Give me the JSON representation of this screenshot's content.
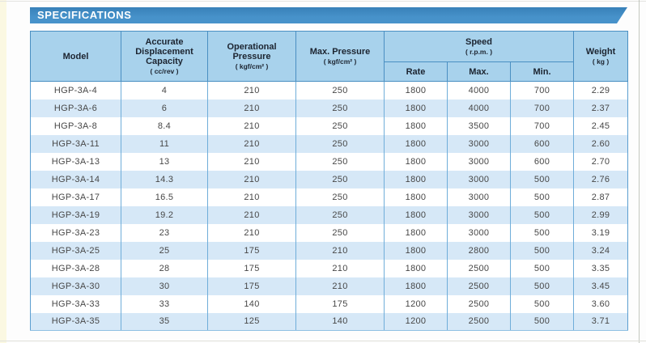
{
  "banner": {
    "title": "SPECIFICATIONS"
  },
  "colors": {
    "banner_blue": "#4792ca",
    "header_bg": "#a8d2ec",
    "stripe_bg": "#d6e8f7",
    "border_blue": "#4a8fc2",
    "page_edge_strip": "#fbf8e2"
  },
  "table": {
    "columns": [
      {
        "label": "Model",
        "unit": ""
      },
      {
        "label": "Accurate Displacement Capacity",
        "unit": "( cc/rev )"
      },
      {
        "label": "Operational Pressure",
        "unit": "( kgf/cm² )"
      },
      {
        "label": "Max. Pressure",
        "unit": "( kgf/cm² )"
      },
      {
        "label": "Speed",
        "unit": "( r.p.m. )",
        "subcolumns": [
          "Rate",
          "Max.",
          "Min."
        ]
      },
      {
        "label": "Weight",
        "unit": "( kg )"
      }
    ],
    "rows": [
      [
        "HGP-3A-4",
        "4",
        "210",
        "250",
        "1800",
        "4000",
        "700",
        "2.29"
      ],
      [
        "HGP-3A-6",
        "6",
        "210",
        "250",
        "1800",
        "4000",
        "700",
        "2.37"
      ],
      [
        "HGP-3A-8",
        "8.4",
        "210",
        "250",
        "1800",
        "3500",
        "700",
        "2.45"
      ],
      [
        "HGP-3A-11",
        "11",
        "210",
        "250",
        "1800",
        "3000",
        "600",
        "2.60"
      ],
      [
        "HGP-3A-13",
        "13",
        "210",
        "250",
        "1800",
        "3000",
        "600",
        "2.70"
      ],
      [
        "HGP-3A-14",
        "14.3",
        "210",
        "250",
        "1800",
        "3000",
        "500",
        "2.76"
      ],
      [
        "HGP-3A-17",
        "16.5",
        "210",
        "250",
        "1800",
        "3000",
        "500",
        "2.87"
      ],
      [
        "HGP-3A-19",
        "19.2",
        "210",
        "250",
        "1800",
        "3000",
        "500",
        "2.99"
      ],
      [
        "HGP-3A-23",
        "23",
        "210",
        "250",
        "1800",
        "3000",
        "500",
        "3.19"
      ],
      [
        "HGP-3A-25",
        "25",
        "175",
        "210",
        "1800",
        "2800",
        "500",
        "3.24"
      ],
      [
        "HGP-3A-28",
        "28",
        "175",
        "210",
        "1800",
        "2500",
        "500",
        "3.35"
      ],
      [
        "HGP-3A-30",
        "30",
        "175",
        "210",
        "1800",
        "2500",
        "500",
        "3.45"
      ],
      [
        "HGP-3A-33",
        "33",
        "140",
        "175",
        "1200",
        "2500",
        "500",
        "3.60"
      ],
      [
        "HGP-3A-35",
        "35",
        "125",
        "140",
        "1200",
        "2500",
        "500",
        "3.71"
      ]
    ]
  }
}
